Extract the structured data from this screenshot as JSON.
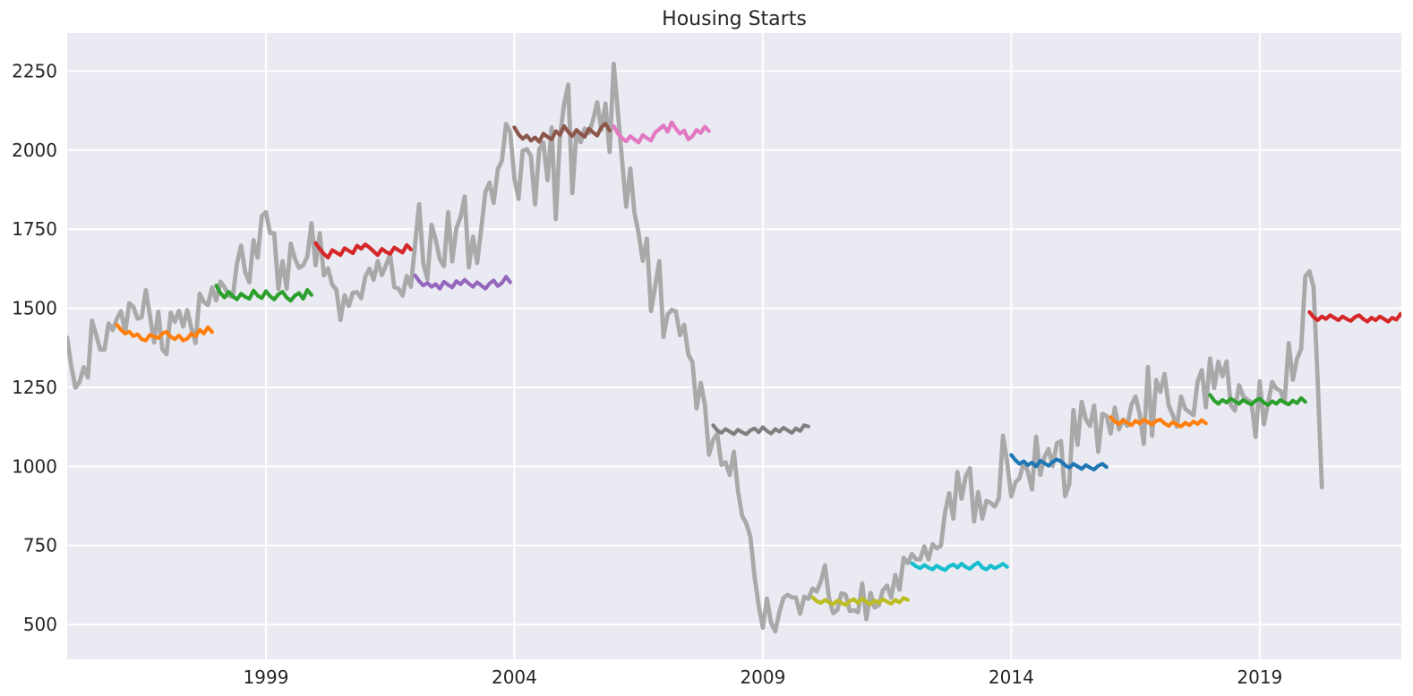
{
  "chart_data": {
    "type": "line",
    "title": "Housing Starts",
    "xlabel": "",
    "ylabel": "",
    "xlim": [
      1995.0,
      2021.85
    ],
    "ylim": [
      390,
      2370
    ],
    "x_ticks": [
      1999,
      2004,
      2009,
      2014,
      2019
    ],
    "y_ticks": [
      500,
      750,
      1000,
      1250,
      1500,
      1750,
      2000,
      2250
    ],
    "grid": true,
    "legend": "none",
    "plot_bg_color": "#eaeaf2",
    "grid_color": "#ffffff",
    "main_series": {
      "name": "housing-starts-actual",
      "color": "#a9a9a9",
      "start_year": 1995,
      "frequency": "monthly",
      "values": [
        1407,
        1316,
        1249,
        1267,
        1314,
        1281,
        1461,
        1416,
        1369,
        1369,
        1452,
        1431,
        1467,
        1491,
        1424,
        1516,
        1504,
        1467,
        1472,
        1557,
        1475,
        1392,
        1489,
        1370,
        1355,
        1486,
        1457,
        1492,
        1442,
        1494,
        1437,
        1390,
        1546,
        1520,
        1510,
        1566,
        1525,
        1584,
        1567,
        1540,
        1536,
        1641,
        1698,
        1614,
        1582,
        1715,
        1660,
        1792,
        1804,
        1738,
        1737,
        1561,
        1649,
        1562,
        1704,
        1657,
        1628,
        1636,
        1663,
        1769,
        1636,
        1737,
        1604,
        1626,
        1575,
        1559,
        1463,
        1541,
        1507,
        1549,
        1551,
        1532,
        1600,
        1625,
        1590,
        1649,
        1605,
        1636,
        1670,
        1567,
        1562,
        1540,
        1602,
        1568,
        1698,
        1829,
        1642,
        1592,
        1764,
        1717,
        1655,
        1633,
        1804,
        1648,
        1753,
        1788,
        1853,
        1629,
        1726,
        1643,
        1751,
        1867,
        1897,
        1833,
        1939,
        1967,
        2083,
        2057,
        1911,
        1846,
        1998,
        2003,
        1981,
        1828,
        2002,
        2024,
        1905,
        2072,
        1782,
        2042,
        2144,
        2207,
        1864,
        2061,
        2025,
        2068,
        2054,
        2095,
        2151,
        2065,
        2147,
        1994,
        2273,
        2119,
        1969,
        1821,
        1942,
        1802,
        1737,
        1650,
        1720,
        1491,
        1570,
        1649,
        1409,
        1480,
        1495,
        1490,
        1415,
        1448,
        1354,
        1330,
        1183,
        1264,
        1197,
        1037,
        1084,
        1103,
        1005,
        1013,
        973,
        1046,
        923,
        844,
        820,
        777,
        652,
        560,
        490,
        582,
        505,
        478,
        540,
        585,
        594,
        586,
        585,
        534,
        588,
        581,
        614,
        604,
        636,
        687,
        583,
        536,
        546,
        599,
        594,
        543,
        545,
        539,
        630,
        517,
        600,
        554,
        561,
        608,
        623,
        585,
        657,
        610,
        711,
        694,
        723,
        706,
        706,
        747,
        706,
        754,
        741,
        749,
        854,
        915,
        835,
        982,
        898,
        969,
        994,
        826,
        919,
        835,
        891,
        885,
        873,
        899,
        1097,
        1013,
        905,
        950,
        963,
        1013,
        984,
        927,
        1094,
        973,
        1029,
        1055,
        1001,
        1073,
        1080,
        906,
        944,
        1178,
        1068,
        1204,
        1149,
        1128,
        1192,
        1046,
        1166,
        1160,
        1104,
        1186,
        1117,
        1148,
        1128,
        1194,
        1221,
        1166,
        1071,
        1314,
        1097,
        1273,
        1236,
        1292,
        1193,
        1163,
        1125,
        1221,
        1182,
        1172,
        1162,
        1269,
        1304,
        1187,
        1341,
        1248,
        1331,
        1285,
        1332,
        1194,
        1176,
        1257,
        1222,
        1211,
        1202,
        1093,
        1269,
        1133,
        1199,
        1267,
        1246,
        1239,
        1204,
        1390,
        1274,
        1340,
        1371,
        1601,
        1617,
        1567,
        1269,
        934
      ]
    },
    "forecast_segments": [
      {
        "name": "forecast-1996",
        "color": "#ff7f0e",
        "start_year": 1996,
        "values": [
          1448,
          1432,
          1420,
          1426,
          1412,
          1418,
          1402,
          1398,
          1416,
          1410,
          1406,
          1420,
          1426,
          1410,
          1402,
          1414,
          1398,
          1404,
          1420,
          1412,
          1432,
          1420,
          1440,
          1425
        ]
      },
      {
        "name": "forecast-1998",
        "color": "#2ca02c",
        "start_year": 1998,
        "values": [
          1572,
          1548,
          1534,
          1552,
          1538,
          1528,
          1546,
          1536,
          1530,
          1556,
          1540,
          1532,
          1554,
          1538,
          1528,
          1544,
          1552,
          1534,
          1524,
          1540,
          1548,
          1530,
          1558,
          1542
        ]
      },
      {
        "name": "forecast-2000",
        "color": "#d62728",
        "start_year": 2000,
        "values": [
          1706,
          1688,
          1672,
          1660,
          1684,
          1676,
          1668,
          1690,
          1682,
          1674,
          1698,
          1688,
          1702,
          1692,
          1680,
          1668,
          1688,
          1678,
          1672,
          1692,
          1684,
          1676,
          1700,
          1686
        ]
      },
      {
        "name": "forecast-2002",
        "color": "#9467bd",
        "start_year": 2002,
        "values": [
          1604,
          1586,
          1572,
          1580,
          1568,
          1576,
          1562,
          1584,
          1574,
          1566,
          1586,
          1576,
          1590,
          1578,
          1568,
          1582,
          1572,
          1562,
          1578,
          1588,
          1570,
          1580,
          1600,
          1582
        ]
      },
      {
        "name": "forecast-2004",
        "color": "#8c564b",
        "start_year": 2004,
        "values": [
          2072,
          2050,
          2036,
          2046,
          2030,
          2040,
          2026,
          2052,
          2042,
          2034,
          2060,
          2048,
          2076,
          2058,
          2044,
          2064,
          2052,
          2042,
          2068,
          2056,
          2046,
          2072,
          2084,
          2062
        ]
      },
      {
        "name": "forecast-2006",
        "color": "#e377c2",
        "start_year": 2006,
        "values": [
          2076,
          2052,
          2038,
          2028,
          2044,
          2034,
          2024,
          2048,
          2038,
          2030,
          2056,
          2066,
          2078,
          2058,
          2088,
          2068,
          2052,
          2062,
          2034,
          2044,
          2064,
          2054,
          2074,
          2060
        ]
      },
      {
        "name": "forecast-2008",
        "color": "#7f7f7f",
        "start_year": 2008,
        "values": [
          1130,
          1114,
          1106,
          1118,
          1110,
          1102,
          1116,
          1108,
          1102,
          1114,
          1120,
          1108,
          1124,
          1112,
          1104,
          1118,
          1110,
          1122,
          1114,
          1106,
          1120,
          1112,
          1130,
          1126
        ]
      },
      {
        "name": "forecast-2010",
        "color": "#bcbd22",
        "start_year": 2010,
        "values": [
          586,
          574,
          568,
          578,
          570,
          564,
          576,
          568,
          562,
          574,
          580,
          568,
          582,
          572,
          564,
          576,
          568,
          580,
          572,
          566,
          578,
          570,
          584,
          578
        ]
      },
      {
        "name": "forecast-2012",
        "color": "#17becf",
        "start_year": 2012,
        "values": [
          694,
          684,
          678,
          688,
          680,
          674,
          686,
          678,
          672,
          684,
          690,
          680,
          692,
          682,
          676,
          688,
          696,
          680,
          674,
          686,
          678,
          684,
          692,
          682
        ]
      },
      {
        "name": "forecast-2014",
        "color": "#1f77b4",
        "start_year": 2014,
        "values": [
          1036,
          1020,
          1008,
          1016,
          1004,
          1012,
          1000,
          1018,
          1010,
          1002,
          1014,
          1022,
          1016,
          1004,
          996,
          1008,
          1000,
          992,
          1004,
          996,
          990,
          1002,
          1008,
          998
        ]
      },
      {
        "name": "forecast-2016",
        "color": "#ff7f0e",
        "start_year": 2016,
        "values": [
          1156,
          1142,
          1134,
          1146,
          1138,
          1130,
          1144,
          1136,
          1148,
          1140,
          1132,
          1144,
          1148,
          1136,
          1128,
          1140,
          1132,
          1126,
          1138,
          1130,
          1142,
          1134,
          1146,
          1136
        ]
      },
      {
        "name": "forecast-2018",
        "color": "#2ca02c",
        "start_year": 2018,
        "values": [
          1226,
          1208,
          1198,
          1210,
          1202,
          1214,
          1206,
          1198,
          1210,
          1202,
          1196,
          1208,
          1214,
          1202,
          1194,
          1206,
          1198,
          1210,
          1202,
          1196,
          1208,
          1200,
          1216,
          1204
        ]
      },
      {
        "name": "forecast-2020",
        "color": "#d62728",
        "start_year": 2020,
        "values": [
          1488,
          1472,
          1462,
          1474,
          1466,
          1478,
          1470,
          1462,
          1474,
          1466,
          1460,
          1472,
          1478,
          1466,
          1458,
          1470,
          1462,
          1474,
          1466,
          1458,
          1470,
          1464,
          1482,
          1468
        ]
      }
    ]
  }
}
